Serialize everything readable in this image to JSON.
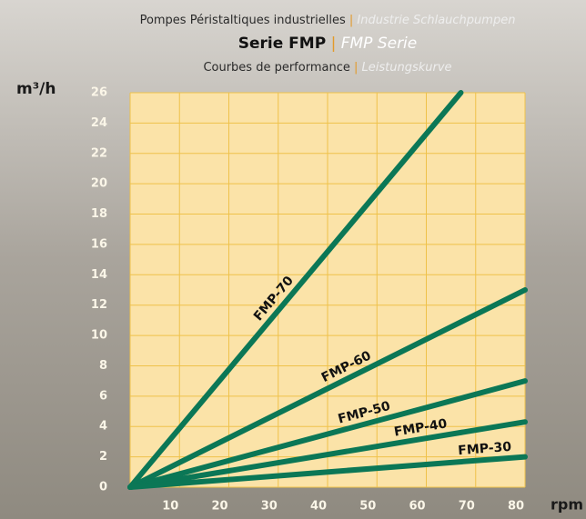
{
  "chart_data": {
    "type": "line",
    "header": "Pompes Péristaltiques industrielles",
    "header_translation": "Industrie Schlauchpumpen",
    "title": "Serie FMP",
    "title_translation": "FMP Serie",
    "subtitle": "Courbes de performance",
    "subtitle_translation": "Leistungskurve",
    "y_label": "m³/h",
    "x_label": "rpm",
    "xlim": [
      0,
      80
    ],
    "xticks": [
      10,
      20,
      30,
      40,
      50,
      60,
      70,
      80
    ],
    "ylim": [
      0,
      26
    ],
    "yticks": [
      0,
      2,
      4,
      6,
      8,
      10,
      12,
      14,
      16,
      18,
      20,
      22,
      24,
      26
    ],
    "grid": true,
    "series": [
      {
        "name": "FMP-70",
        "color": "#0b7756",
        "x": [
          0,
          67
        ],
        "values": [
          0,
          26
        ]
      },
      {
        "name": "FMP-60",
        "color": "#0b7756",
        "x": [
          0,
          80
        ],
        "values": [
          0,
          13
        ]
      },
      {
        "name": "FMP-50",
        "color": "#0b7756",
        "x": [
          0,
          80
        ],
        "values": [
          0,
          7
        ]
      },
      {
        "name": "FMP-40",
        "color": "#0b7756",
        "x": [
          0,
          80
        ],
        "values": [
          0,
          4.3
        ]
      },
      {
        "name": "FMP-30",
        "color": "#0b7756",
        "x": [
          0,
          80
        ],
        "values": [
          0,
          2
        ]
      }
    ]
  }
}
